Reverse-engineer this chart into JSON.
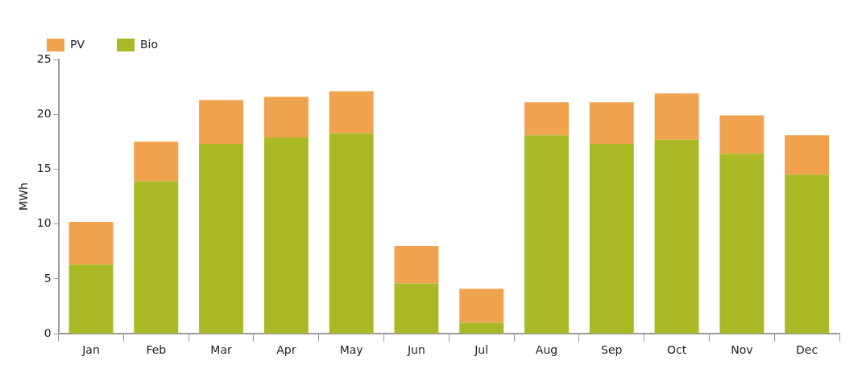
{
  "chart_data": {
    "type": "bar",
    "ylabel": "MWh",
    "categories": [
      "Jan",
      "Feb",
      "Mar",
      "Apr",
      "May",
      "Jun",
      "Jul",
      "Aug",
      "Sep",
      "Oct",
      "Nov",
      "Dec"
    ],
    "series": [
      {
        "name": "Bio",
        "color": "#abb826",
        "values": [
          6.3,
          13.9,
          17.3,
          17.9,
          18.3,
          4.6,
          1.0,
          18.1,
          17.3,
          17.7,
          16.4,
          14.5
        ]
      },
      {
        "name": "PV",
        "color": "#f0a24e",
        "values": [
          3.9,
          3.6,
          4.0,
          3.7,
          3.8,
          3.4,
          3.1,
          3.0,
          3.8,
          4.2,
          3.5,
          3.6
        ]
      }
    ],
    "stacked": true,
    "ylim": [
      0,
      25
    ],
    "yticks": [
      0,
      5,
      10,
      15,
      20,
      25
    ],
    "grid": false,
    "legend": "top left"
  }
}
